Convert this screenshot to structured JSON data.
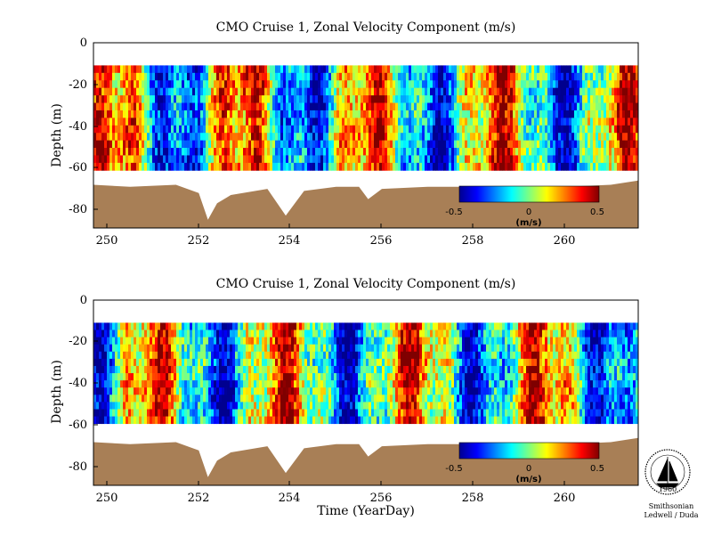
{
  "colors": {
    "seabed": "#a87f56",
    "colormap": [
      "#00008f",
      "#0000ff",
      "#007fff",
      "#00ffff",
      "#7fff7f",
      "#ffff00",
      "#ff7f00",
      "#ff0000",
      "#7f0000"
    ]
  },
  "chart_data": [
    {
      "type": "heatmap",
      "title": "CMO Cruise 1, Zonal Velocity Component (m/s)",
      "xlabel": "",
      "ylabel": "Depth (m)",
      "xlim": [
        249.7,
        261.6
      ],
      "ylim": [
        -90,
        0
      ],
      "xticks": [
        "250",
        "252",
        "254",
        "256",
        "258",
        "260"
      ],
      "yticks": [
        "0",
        "-20",
        "-40",
        "-60",
        "-80"
      ],
      "data_depth_range": [
        -62,
        -11
      ],
      "colorbar": {
        "range": [
          -0.5,
          0.5
        ],
        "ticks": [
          "-0.5",
          "0",
          "0.5"
        ],
        "unit": "(m/s)"
      },
      "seabed_depth": [
        {
          "x": 249.7,
          "y": -69
        },
        {
          "x": 250.5,
          "y": -70
        },
        {
          "x": 251.5,
          "y": -69
        },
        {
          "x": 252.0,
          "y": -73
        },
        {
          "x": 252.2,
          "y": -86
        },
        {
          "x": 252.4,
          "y": -78
        },
        {
          "x": 252.7,
          "y": -74
        },
        {
          "x": 253.5,
          "y": -71
        },
        {
          "x": 253.9,
          "y": -84
        },
        {
          "x": 254.3,
          "y": -72
        },
        {
          "x": 255.0,
          "y": -70
        },
        {
          "x": 255.5,
          "y": -70
        },
        {
          "x": 255.7,
          "y": -76
        },
        {
          "x": 256.0,
          "y": -71
        },
        {
          "x": 257.0,
          "y": -70
        },
        {
          "x": 258.0,
          "y": -70
        },
        {
          "x": 259.0,
          "y": -70
        },
        {
          "x": 260.0,
          "y": -70
        },
        {
          "x": 261.0,
          "y": -69
        },
        {
          "x": 261.6,
          "y": -67
        }
      ]
    },
    {
      "type": "heatmap",
      "title": "CMO Cruise 1, Zonal Velocity Component (m/s)",
      "xlabel": "Time (YearDay)",
      "ylabel": "Depth (m)",
      "xlim": [
        249.7,
        261.6
      ],
      "ylim": [
        -90,
        0
      ],
      "xticks": [
        "250",
        "252",
        "254",
        "256",
        "258",
        "260"
      ],
      "yticks": [
        "0",
        "-20",
        "-40",
        "-60",
        "-80"
      ],
      "data_depth_range": [
        -60,
        -11
      ],
      "colorbar": {
        "range": [
          -0.5,
          0.5
        ],
        "ticks": [
          "-0.5",
          "0",
          "0.5"
        ],
        "unit": "(m/s)"
      },
      "seabed_depth": [
        {
          "x": 249.7,
          "y": -69
        },
        {
          "x": 250.5,
          "y": -70
        },
        {
          "x": 251.5,
          "y": -69
        },
        {
          "x": 252.0,
          "y": -73
        },
        {
          "x": 252.2,
          "y": -86
        },
        {
          "x": 252.4,
          "y": -78
        },
        {
          "x": 252.7,
          "y": -74
        },
        {
          "x": 253.5,
          "y": -71
        },
        {
          "x": 253.9,
          "y": -84
        },
        {
          "x": 254.3,
          "y": -72
        },
        {
          "x": 255.0,
          "y": -70
        },
        {
          "x": 255.5,
          "y": -70
        },
        {
          "x": 255.7,
          "y": -76
        },
        {
          "x": 256.0,
          "y": -71
        },
        {
          "x": 257.0,
          "y": -70
        },
        {
          "x": 258.0,
          "y": -70
        },
        {
          "x": 259.0,
          "y": -70
        },
        {
          "x": 260.0,
          "y": -70
        },
        {
          "x": 261.0,
          "y": -69
        },
        {
          "x": 261.6,
          "y": -67
        }
      ]
    }
  ],
  "logo": {
    "year": "1960",
    "line1": "Smithsonian",
    "line2": "Ledwell / Duda"
  }
}
